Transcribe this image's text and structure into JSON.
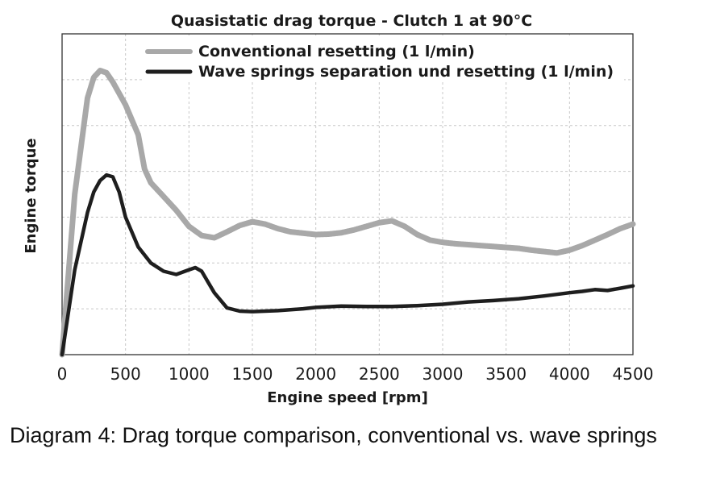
{
  "chart_data": {
    "type": "line",
    "title": "Quasistatic drag torque - Clutch 1 at 90°C",
    "xlabel": "Engine speed [rpm]",
    "ylabel": "Engine torque",
    "xlim": [
      0,
      4500
    ],
    "ylim": [
      0,
      7
    ],
    "x_ticks": [
      "0",
      "500",
      "1000",
      "1500",
      "2000",
      "2500",
      "3000",
      "3500",
      "4000",
      "4500"
    ],
    "y_ticks_labeled": false,
    "grid": true,
    "legend_position": "top-center",
    "series": [
      {
        "name": "Conventional resetting (1 l/min)",
        "color": "#a8a8a8",
        "x": [
          0,
          100,
          200,
          250,
          300,
          350,
          400,
          500,
          600,
          650,
          700,
          800,
          900,
          1000,
          1100,
          1200,
          1300,
          1400,
          1500,
          1600,
          1700,
          1800,
          1900,
          2000,
          2100,
          2200,
          2300,
          2400,
          2500,
          2600,
          2700,
          2800,
          2900,
          3000,
          3100,
          3200,
          3300,
          3400,
          3500,
          3600,
          3700,
          3800,
          3900,
          4000,
          4100,
          4200,
          4300,
          4400,
          4500
        ],
        "y": [
          0,
          3.5,
          5.6,
          6.05,
          6.2,
          6.15,
          5.95,
          5.45,
          4.8,
          4.05,
          3.75,
          3.45,
          3.15,
          2.8,
          2.6,
          2.55,
          2.68,
          2.82,
          2.9,
          2.85,
          2.75,
          2.68,
          2.65,
          2.62,
          2.63,
          2.66,
          2.72,
          2.8,
          2.88,
          2.92,
          2.8,
          2.62,
          2.5,
          2.45,
          2.42,
          2.4,
          2.38,
          2.36,
          2.34,
          2.32,
          2.28,
          2.25,
          2.22,
          2.28,
          2.38,
          2.5,
          2.62,
          2.75,
          2.85
        ]
      },
      {
        "name": "Wave springs separation und resetting (1 l/min)",
        "color": "#1e1e1e",
        "x": [
          0,
          100,
          200,
          250,
          300,
          350,
          400,
          450,
          500,
          600,
          700,
          800,
          900,
          1000,
          1050,
          1100,
          1200,
          1300,
          1400,
          1500,
          1600,
          1700,
          1800,
          1900,
          2000,
          2200,
          2400,
          2600,
          2800,
          3000,
          3200,
          3400,
          3600,
          3800,
          4000,
          4100,
          4200,
          4300,
          4400,
          4500
        ],
        "y": [
          0,
          1.85,
          3.1,
          3.55,
          3.8,
          3.92,
          3.88,
          3.55,
          3.0,
          2.35,
          2.0,
          1.82,
          1.75,
          1.85,
          1.9,
          1.82,
          1.35,
          1.02,
          0.95,
          0.94,
          0.95,
          0.96,
          0.98,
          1.0,
          1.03,
          1.06,
          1.05,
          1.05,
          1.07,
          1.1,
          1.15,
          1.18,
          1.22,
          1.28,
          1.35,
          1.38,
          1.42,
          1.4,
          1.45,
          1.5
        ]
      }
    ]
  },
  "caption": "Diagram 4: Drag torque comparison, conventional vs. wave springs"
}
